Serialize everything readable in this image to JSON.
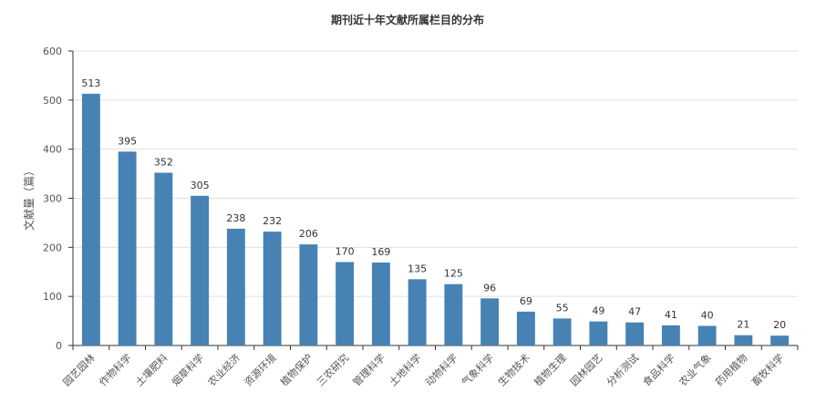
{
  "chart_data": {
    "type": "bar",
    "title": "期刊近十年文献所属栏目的分布",
    "ylabel": "文献量（篇）",
    "xlabel": "",
    "ylim": [
      0,
      600
    ],
    "yticks": [
      0,
      100,
      200,
      300,
      400,
      500,
      600
    ],
    "grid": true,
    "bar_color": "#4682B4",
    "categories": [
      "园艺园林",
      "作物科学",
      "土壤肥料",
      "烟草科学",
      "农业经济",
      "资源环境",
      "植物保护",
      "三农研究",
      "管理科学",
      "土地科学",
      "动物科学",
      "气象科学",
      "生物技术",
      "植物生理",
      "园林园艺",
      "分析测试",
      "食品科学",
      "农业气象",
      "药用植物",
      "畜牧科学"
    ],
    "values": [
      513,
      395,
      352,
      305,
      238,
      232,
      206,
      170,
      169,
      135,
      125,
      96,
      69,
      55,
      49,
      47,
      41,
      40,
      21,
      20
    ]
  }
}
